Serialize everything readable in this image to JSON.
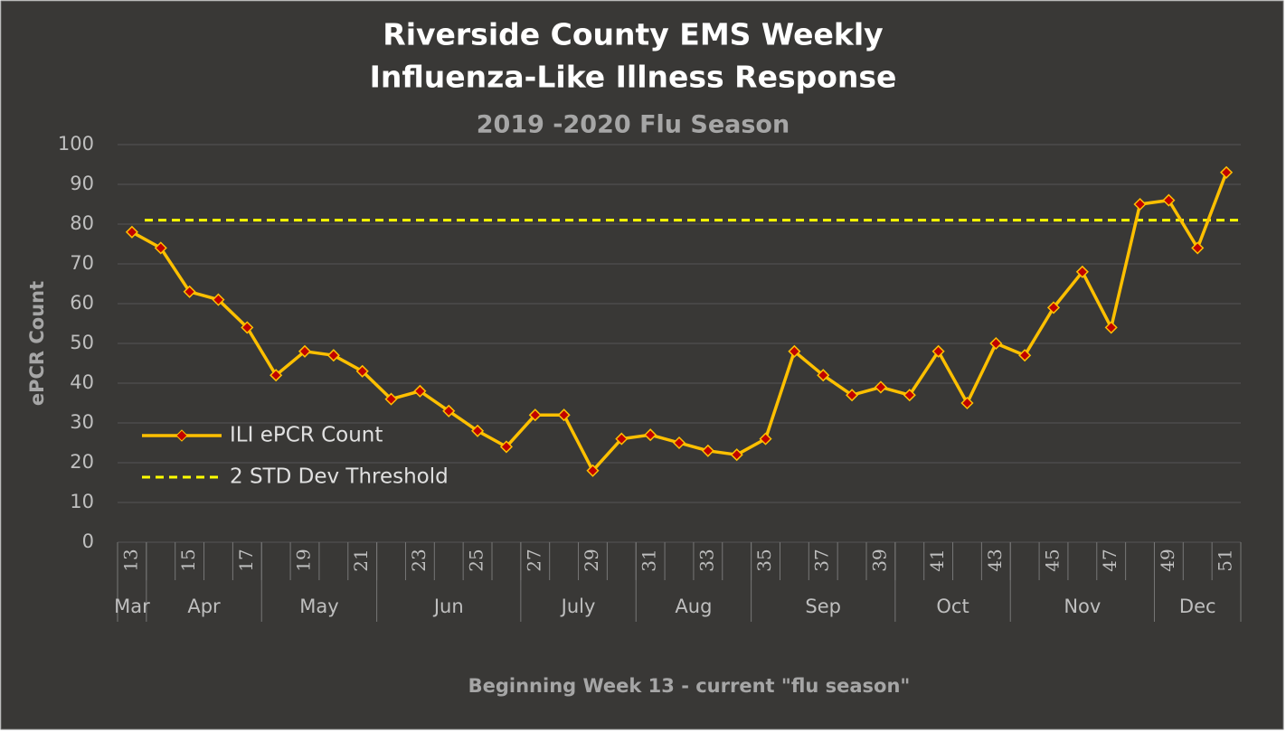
{
  "chart_data": {
    "type": "line",
    "title": [
      "Riverside County EMS Weekly",
      "Influenza-Like Illness Response"
    ],
    "subtitle": "2019 -2020 Flu Season",
    "y_label": "ePCR Count",
    "x_label": "Beginning Week 13 - current \"flu season\"",
    "x": [
      13,
      14,
      15,
      16,
      17,
      18,
      19,
      20,
      21,
      22,
      23,
      24,
      25,
      26,
      27,
      28,
      29,
      30,
      31,
      32,
      33,
      34,
      35,
      36,
      37,
      38,
      39,
      40,
      41,
      42,
      43,
      44,
      45,
      46,
      47,
      48,
      49,
      50,
      51
    ],
    "xlim": [
      12.5,
      51.5
    ],
    "xticks": [
      13,
      15,
      17,
      19,
      21,
      23,
      25,
      27,
      29,
      31,
      33,
      35,
      37,
      39,
      41,
      43,
      45,
      47,
      49,
      51
    ],
    "month_groups": [
      {
        "label": "Mar",
        "weeks": [
          13,
          13
        ]
      },
      {
        "label": "Apr",
        "weeks": [
          14,
          17
        ]
      },
      {
        "label": "May",
        "weeks": [
          18,
          21
        ]
      },
      {
        "label": "Jun",
        "weeks": [
          22,
          26
        ]
      },
      {
        "label": "July",
        "weeks": [
          27,
          30
        ]
      },
      {
        "label": "Aug",
        "weeks": [
          31,
          34
        ]
      },
      {
        "label": "Sep",
        "weeks": [
          35,
          39
        ]
      },
      {
        "label": "Oct",
        "weeks": [
          40,
          43
        ]
      },
      {
        "label": "Nov",
        "weeks": [
          44,
          48
        ]
      },
      {
        "label": "Dec",
        "weeks": [
          49,
          51
        ]
      }
    ],
    "series": [
      {
        "name": "ILI ePCR Count",
        "color": "#ffc000",
        "marker_color": "#c00000",
        "values": [
          78,
          74,
          63,
          61,
          54,
          42,
          48,
          47,
          43,
          36,
          38,
          33,
          28,
          24,
          32,
          32,
          18,
          26,
          27,
          25,
          23,
          22,
          26,
          48,
          42,
          37,
          39,
          37,
          48,
          35,
          50,
          47,
          59,
          68,
          54,
          85,
          86,
          74,
          93
        ]
      }
    ],
    "threshold": {
      "name": "2 STD Dev Threshold",
      "value": 81,
      "color": "#ffff00"
    },
    "ylim": [
      0,
      100
    ],
    "yticks": [
      0,
      10,
      20,
      30,
      40,
      50,
      60,
      70,
      80,
      90,
      100
    ],
    "grid": true,
    "legend": "left"
  }
}
